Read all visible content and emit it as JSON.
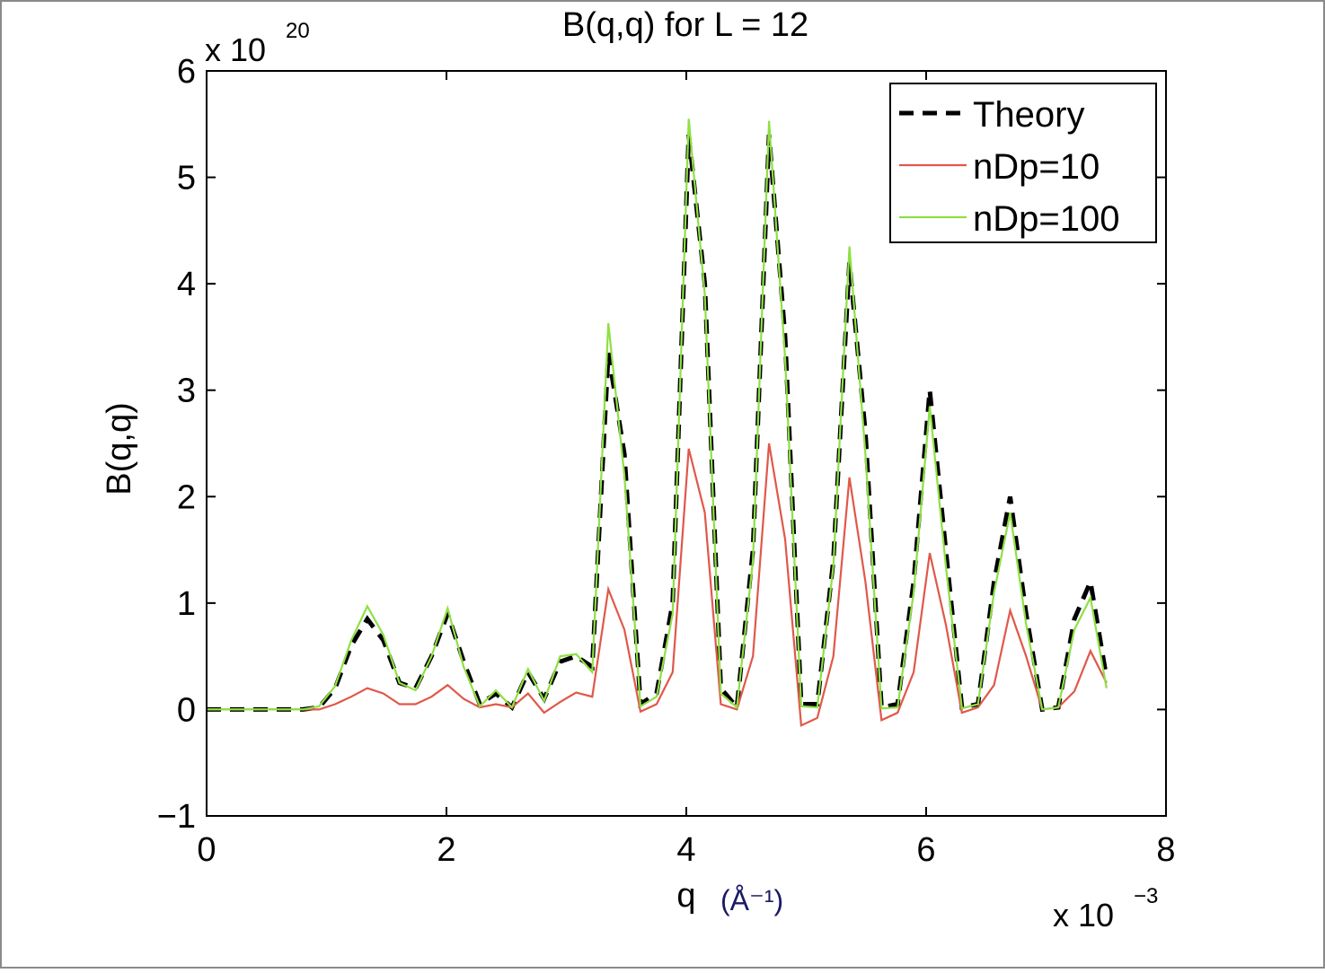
{
  "chart_data": {
    "type": "line",
    "title": "B(q,q) for L =    12",
    "y_label": "B(q,q)",
    "x_label": "q",
    "x_unit": "(Å⁻¹)",
    "y_multiplier": "x 10",
    "y_multiplier_exp": "20",
    "x_multiplier": "x 10",
    "x_multiplier_exp": "−3",
    "x": [
      0,
      0.134,
      0.268,
      0.402,
      0.536,
      0.67,
      0.804,
      0.938,
      1.072,
      1.206,
      1.34,
      1.474,
      1.608,
      1.742,
      1.876,
      2.01,
      2.144,
      2.278,
      2.412,
      2.546,
      2.68,
      2.814,
      2.948,
      3.082,
      3.216,
      3.35,
      3.484,
      3.618,
      3.752,
      3.886,
      4.02,
      4.154,
      4.288,
      4.422,
      4.556,
      4.69,
      4.824,
      4.958,
      5.092,
      5.226,
      5.36,
      5.494,
      5.628,
      5.762,
      5.896,
      6.03,
      6.164,
      6.298,
      6.432,
      6.566,
      6.7,
      6.834,
      6.968,
      7.102,
      7.236,
      7.37,
      7.504
    ],
    "series": [
      {
        "name": "Theory",
        "color": "#000000",
        "style": "dashed",
        "values": [
          0,
          0,
          0,
          0,
          0,
          0,
          0,
          0.02,
          0.2,
          0.6,
          0.85,
          0.65,
          0.25,
          0.2,
          0.5,
          0.9,
          0.45,
          0.05,
          0.15,
          0.02,
          0.35,
          0.1,
          0.45,
          0.5,
          0.4,
          3.35,
          2.4,
          0.05,
          0.15,
          1.0,
          5.4,
          4.0,
          0.2,
          0.02,
          1.5,
          5.4,
          3.5,
          0.05,
          0.05,
          1.4,
          4.2,
          2.6,
          0.02,
          0.05,
          1.2,
          3.0,
          1.5,
          0.02,
          0.05,
          1.2,
          2.0,
          0.9,
          0.0,
          0.02,
          0.85,
          1.2,
          0.3
        ]
      },
      {
        "name": "nDp=10",
        "color": "#e0584a",
        "style": "solid",
        "values": [
          0,
          0,
          0,
          0,
          0,
          0,
          0,
          0,
          0.05,
          0.12,
          0.2,
          0.15,
          0.05,
          0.05,
          0.12,
          0.23,
          0.1,
          0.02,
          0.05,
          0.02,
          0.15,
          -0.03,
          0.07,
          0.16,
          0.12,
          1.13,
          0.75,
          -0.02,
          0.05,
          0.35,
          2.45,
          1.85,
          0.05,
          0.0,
          0.5,
          2.5,
          1.6,
          -0.15,
          -0.08,
          0.5,
          2.18,
          1.2,
          -0.1,
          -0.03,
          0.35,
          1.47,
          0.8,
          -0.03,
          0.02,
          0.23,
          0.93,
          0.5,
          0.0,
          0.02,
          0.17,
          0.55,
          0.25
        ]
      },
      {
        "name": "nDp=100",
        "color": "#8ee044",
        "style": "solid",
        "values": [
          0,
          0,
          0,
          0,
          0,
          0,
          0,
          0.03,
          0.22,
          0.65,
          0.97,
          0.7,
          0.25,
          0.18,
          0.5,
          0.95,
          0.4,
          0.03,
          0.18,
          0.02,
          0.38,
          0.08,
          0.5,
          0.52,
          0.35,
          3.63,
          2.2,
          0.03,
          0.12,
          0.9,
          5.55,
          3.9,
          0.15,
          0.02,
          1.4,
          5.53,
          3.3,
          0.03,
          0.02,
          1.35,
          4.35,
          2.4,
          0.01,
          0.02,
          1.1,
          2.85,
          1.35,
          0.01,
          0.05,
          1.1,
          1.85,
          0.8,
          0.0,
          0.02,
          0.75,
          1.05,
          0.2
        ]
      }
    ],
    "xlim": [
      0,
      8
    ],
    "ylim": [
      -1,
      6
    ],
    "xticks": [
      0,
      2,
      4,
      6,
      8
    ],
    "yticks": [
      {
        "value": -1,
        "label": "−1"
      },
      0,
      1,
      2,
      3,
      4,
      5,
      6
    ],
    "legend": "upper right"
  }
}
